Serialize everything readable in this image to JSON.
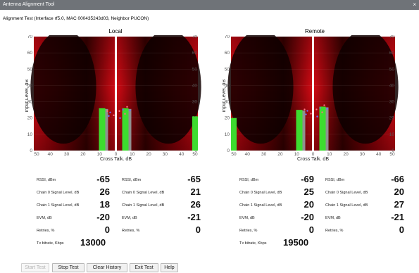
{
  "window": {
    "title": "Antenna Alignment Tool",
    "close_glyph": "×"
  },
  "subtitle": "Alignment Test (Interface rf5.0, MAC 000435243d03, Neighbor PUCON)",
  "axes": {
    "ylabel": "Input Level, dB",
    "xlabel": "Cross Talk, dB",
    "y_ticks": [
      "70",
      "60",
      "50",
      "40",
      "30",
      "20",
      "10",
      "0"
    ],
    "x_ticks": [
      "50",
      "40",
      "30",
      "20",
      "10",
      "0",
      "10",
      "20",
      "30",
      "40",
      "50"
    ]
  },
  "colors": {
    "background_dark": "#100000",
    "background_red": "#d40a14",
    "bar_green": "#3ddc2f",
    "bar_gray": "#909090",
    "marker_pink": "#ff7080",
    "marker_blue": "#6c6cff"
  },
  "chart_data": [
    {
      "type": "bar",
      "title": "Local",
      "xlabel": "Cross Talk, dB",
      "ylabel": "Input Level, dB",
      "ylim": [
        0,
        70
      ],
      "xlim": [
        -50,
        50
      ],
      "series": [
        {
          "name": "Chain 0 Signal Level, dB",
          "value": 26
        },
        {
          "name": "Chain 1 Signal Level, dB",
          "value": 26
        }
      ],
      "right_edge_level": 21
    },
    {
      "type": "bar",
      "title": "Remote",
      "xlabel": "Cross Talk, dB",
      "ylabel": "Input Level, dB",
      "ylim": [
        0,
        70
      ],
      "xlim": [
        -50,
        50
      ],
      "series": [
        {
          "name": "Chain 0 Signal Level, dB",
          "value": 25
        },
        {
          "name": "Chain 1 Signal Level, dB",
          "value": 27
        }
      ],
      "left_edge_level": 20
    }
  ],
  "stats": {
    "local_a": {
      "rssi_label": "RSSI, dBm",
      "rssi": "-65",
      "c0_label": "Chain 0 Signal Level, dB",
      "c0": "26",
      "c1_label": "Chain 1 Signal Level, dB",
      "c1": "18",
      "evm_label": "EVM, dB",
      "evm": "-20",
      "ret_label": "Retries, %",
      "ret": "0",
      "tx_label": "Tx bitrate, Kbps",
      "tx": "13000"
    },
    "local_b": {
      "rssi_label": "RSSI, dBm",
      "rssi": "-65",
      "c0_label": "Chain 0 Signal Level, dB",
      "c0": "21",
      "c1_label": "Chain 1 Signal Level, dB",
      "c1": "26",
      "evm_label": "EVM, dB",
      "evm": "-21",
      "ret_label": "Retries, %",
      "ret": "0"
    },
    "remote_a": {
      "rssi_label": "RSSI, dBm",
      "rssi": "-69",
      "c0_label": "Chain 0 Signal Level, dB",
      "c0": "25",
      "c1_label": "Chain 1 Signal Level, dB",
      "c1": "20",
      "evm_label": "EVM, dB",
      "evm": "-20",
      "ret_label": "Retries, %",
      "ret": "0",
      "tx_label": "Tx bitrate, Kbps",
      "tx": "19500"
    },
    "remote_b": {
      "rssi_label": "RSSI, dBm",
      "rssi": "-66",
      "c0_label": "Chain 0 Signal Level, dB",
      "c0": "20",
      "c1_label": "Chain 1 Signal Level, dB",
      "c1": "27",
      "evm_label": "EVM, dB",
      "evm": "-21",
      "ret_label": "Retries, %",
      "ret": "0"
    }
  },
  "buttons": {
    "start": "Start Test",
    "stop": "Stop Test",
    "clear": "Clear History",
    "exit": "Exit Test",
    "help": "Help"
  }
}
